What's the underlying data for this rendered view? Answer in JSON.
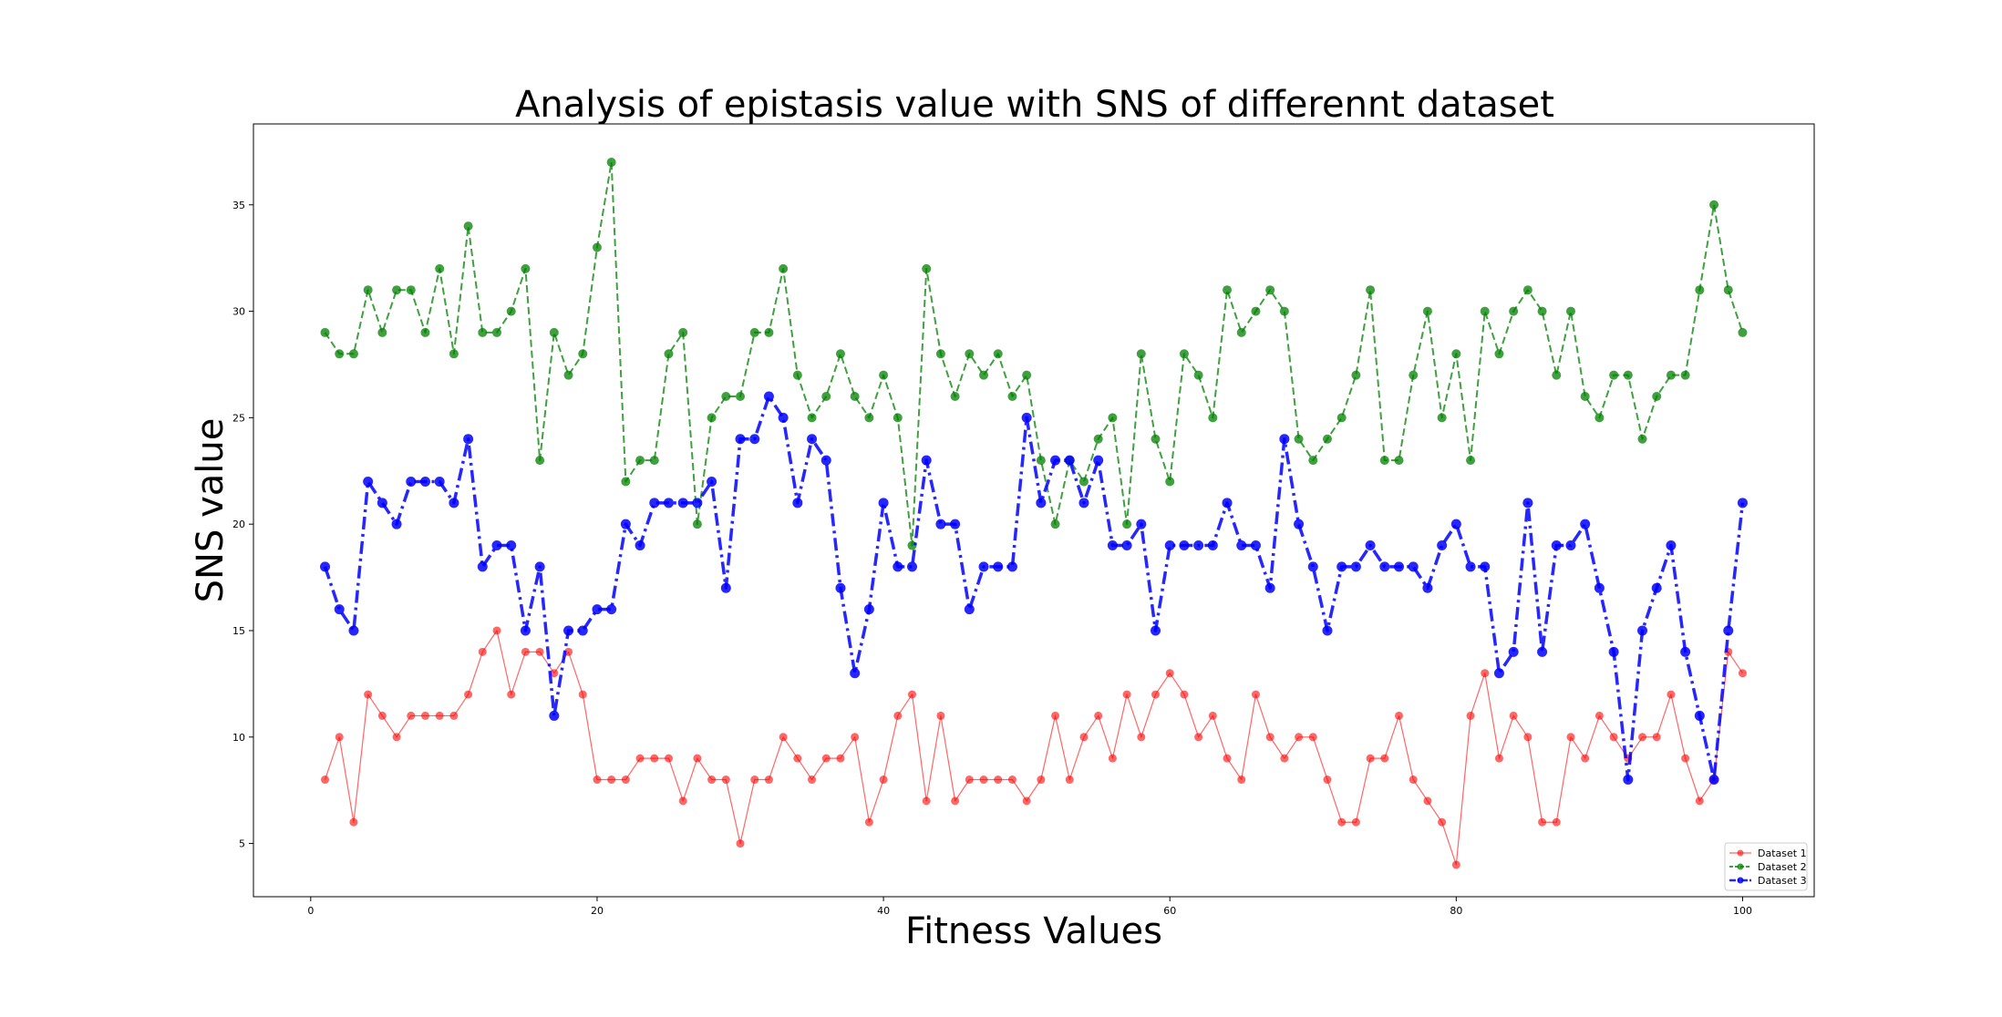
{
  "chart_data": {
    "type": "line",
    "title": "Analysis of epistasis value with SNS of differennt dataset",
    "xlabel": "Fitness Values",
    "ylabel": "SNS value",
    "xlim": [
      -4,
      105
    ],
    "ylim": [
      2.5,
      38.8
    ],
    "xticks": [
      0,
      20,
      40,
      60,
      80,
      100
    ],
    "yticks": [
      5,
      10,
      15,
      20,
      25,
      30,
      35
    ],
    "grid": false,
    "legend_position": "bottom-right",
    "x": [
      1,
      2,
      3,
      4,
      5,
      6,
      7,
      8,
      9,
      10,
      11,
      12,
      13,
      14,
      15,
      16,
      17,
      18,
      19,
      20,
      21,
      22,
      23,
      24,
      25,
      26,
      27,
      28,
      29,
      30,
      31,
      32,
      33,
      34,
      35,
      36,
      37,
      38,
      39,
      40,
      41,
      42,
      43,
      44,
      45,
      46,
      47,
      48,
      49,
      50,
      51,
      52,
      53,
      54,
      55,
      56,
      57,
      58,
      59,
      60,
      61,
      62,
      63,
      64,
      65,
      66,
      67,
      68,
      69,
      70,
      71,
      72,
      73,
      74,
      75,
      76,
      77,
      78,
      79,
      80,
      81,
      82,
      83,
      84,
      85,
      86,
      87,
      88,
      89,
      90,
      91,
      92,
      93,
      94,
      95,
      96,
      97,
      98,
      99,
      100
    ],
    "series": [
      {
        "name": "Dataset 1",
        "color": "#ff0000",
        "style": "solid-thin",
        "values": [
          8,
          10,
          6,
          12,
          11,
          10,
          11,
          11,
          11,
          11,
          12,
          14,
          15,
          12,
          14,
          14,
          13,
          14,
          12,
          8,
          8,
          8,
          9,
          9,
          9,
          7,
          9,
          8,
          8,
          5,
          8,
          8,
          10,
          9,
          8,
          9,
          9,
          10,
          6,
          8,
          11,
          12,
          7,
          11,
          7,
          8,
          8,
          8,
          8,
          7,
          8,
          11,
          8,
          10,
          11,
          9,
          12,
          10,
          12,
          13,
          12,
          10,
          11,
          9,
          8,
          12,
          10,
          9,
          10,
          10,
          8,
          6,
          6,
          9,
          9,
          11,
          8,
          7,
          6,
          4,
          11,
          13,
          9,
          11,
          10,
          6,
          6,
          10,
          9,
          11,
          10,
          9,
          10,
          10,
          12,
          9,
          7,
          8,
          14,
          13
        ]
      },
      {
        "name": "Dataset 2",
        "color": "#008000",
        "style": "dashed",
        "values": [
          29,
          28,
          28,
          31,
          29,
          31,
          31,
          29,
          32,
          28,
          34,
          29,
          29,
          30,
          32,
          23,
          29,
          27,
          28,
          33,
          37,
          22,
          23,
          23,
          28,
          29,
          20,
          25,
          26,
          26,
          29,
          29,
          32,
          27,
          25,
          26,
          28,
          26,
          25,
          27,
          25,
          19,
          32,
          28,
          26,
          28,
          27,
          28,
          26,
          27,
          23,
          20,
          23,
          22,
          24,
          25,
          20,
          28,
          24,
          22,
          28,
          27,
          25,
          31,
          29,
          30,
          31,
          30,
          24,
          23,
          24,
          25,
          27,
          31,
          23,
          23,
          27,
          30,
          25,
          28,
          23,
          30,
          28,
          30,
          31,
          30,
          27,
          30,
          26,
          25,
          27,
          27,
          24,
          26,
          27,
          27,
          31,
          35,
          31,
          29
        ]
      },
      {
        "name": "Dataset 3",
        "color": "#0000ff",
        "style": "dashdot",
        "values": [
          18,
          16,
          15,
          22,
          21,
          20,
          22,
          22,
          22,
          21,
          24,
          18,
          19,
          19,
          15,
          18,
          11,
          15,
          15,
          16,
          16,
          20,
          19,
          21,
          21,
          21,
          21,
          22,
          17,
          24,
          24,
          26,
          25,
          21,
          24,
          23,
          17,
          13,
          16,
          21,
          18,
          18,
          23,
          20,
          20,
          16,
          18,
          18,
          18,
          25,
          21,
          23,
          23,
          21,
          23,
          19,
          19,
          20,
          15,
          19,
          19,
          19,
          19,
          21,
          19,
          19,
          17,
          24,
          20,
          18,
          15,
          18,
          18,
          19,
          18,
          18,
          18,
          17,
          19,
          20,
          18,
          18,
          13,
          14,
          21,
          14,
          19,
          19,
          20,
          17,
          14,
          8,
          15,
          17,
          19,
          14,
          11,
          8,
          15,
          21
        ]
      }
    ]
  }
}
